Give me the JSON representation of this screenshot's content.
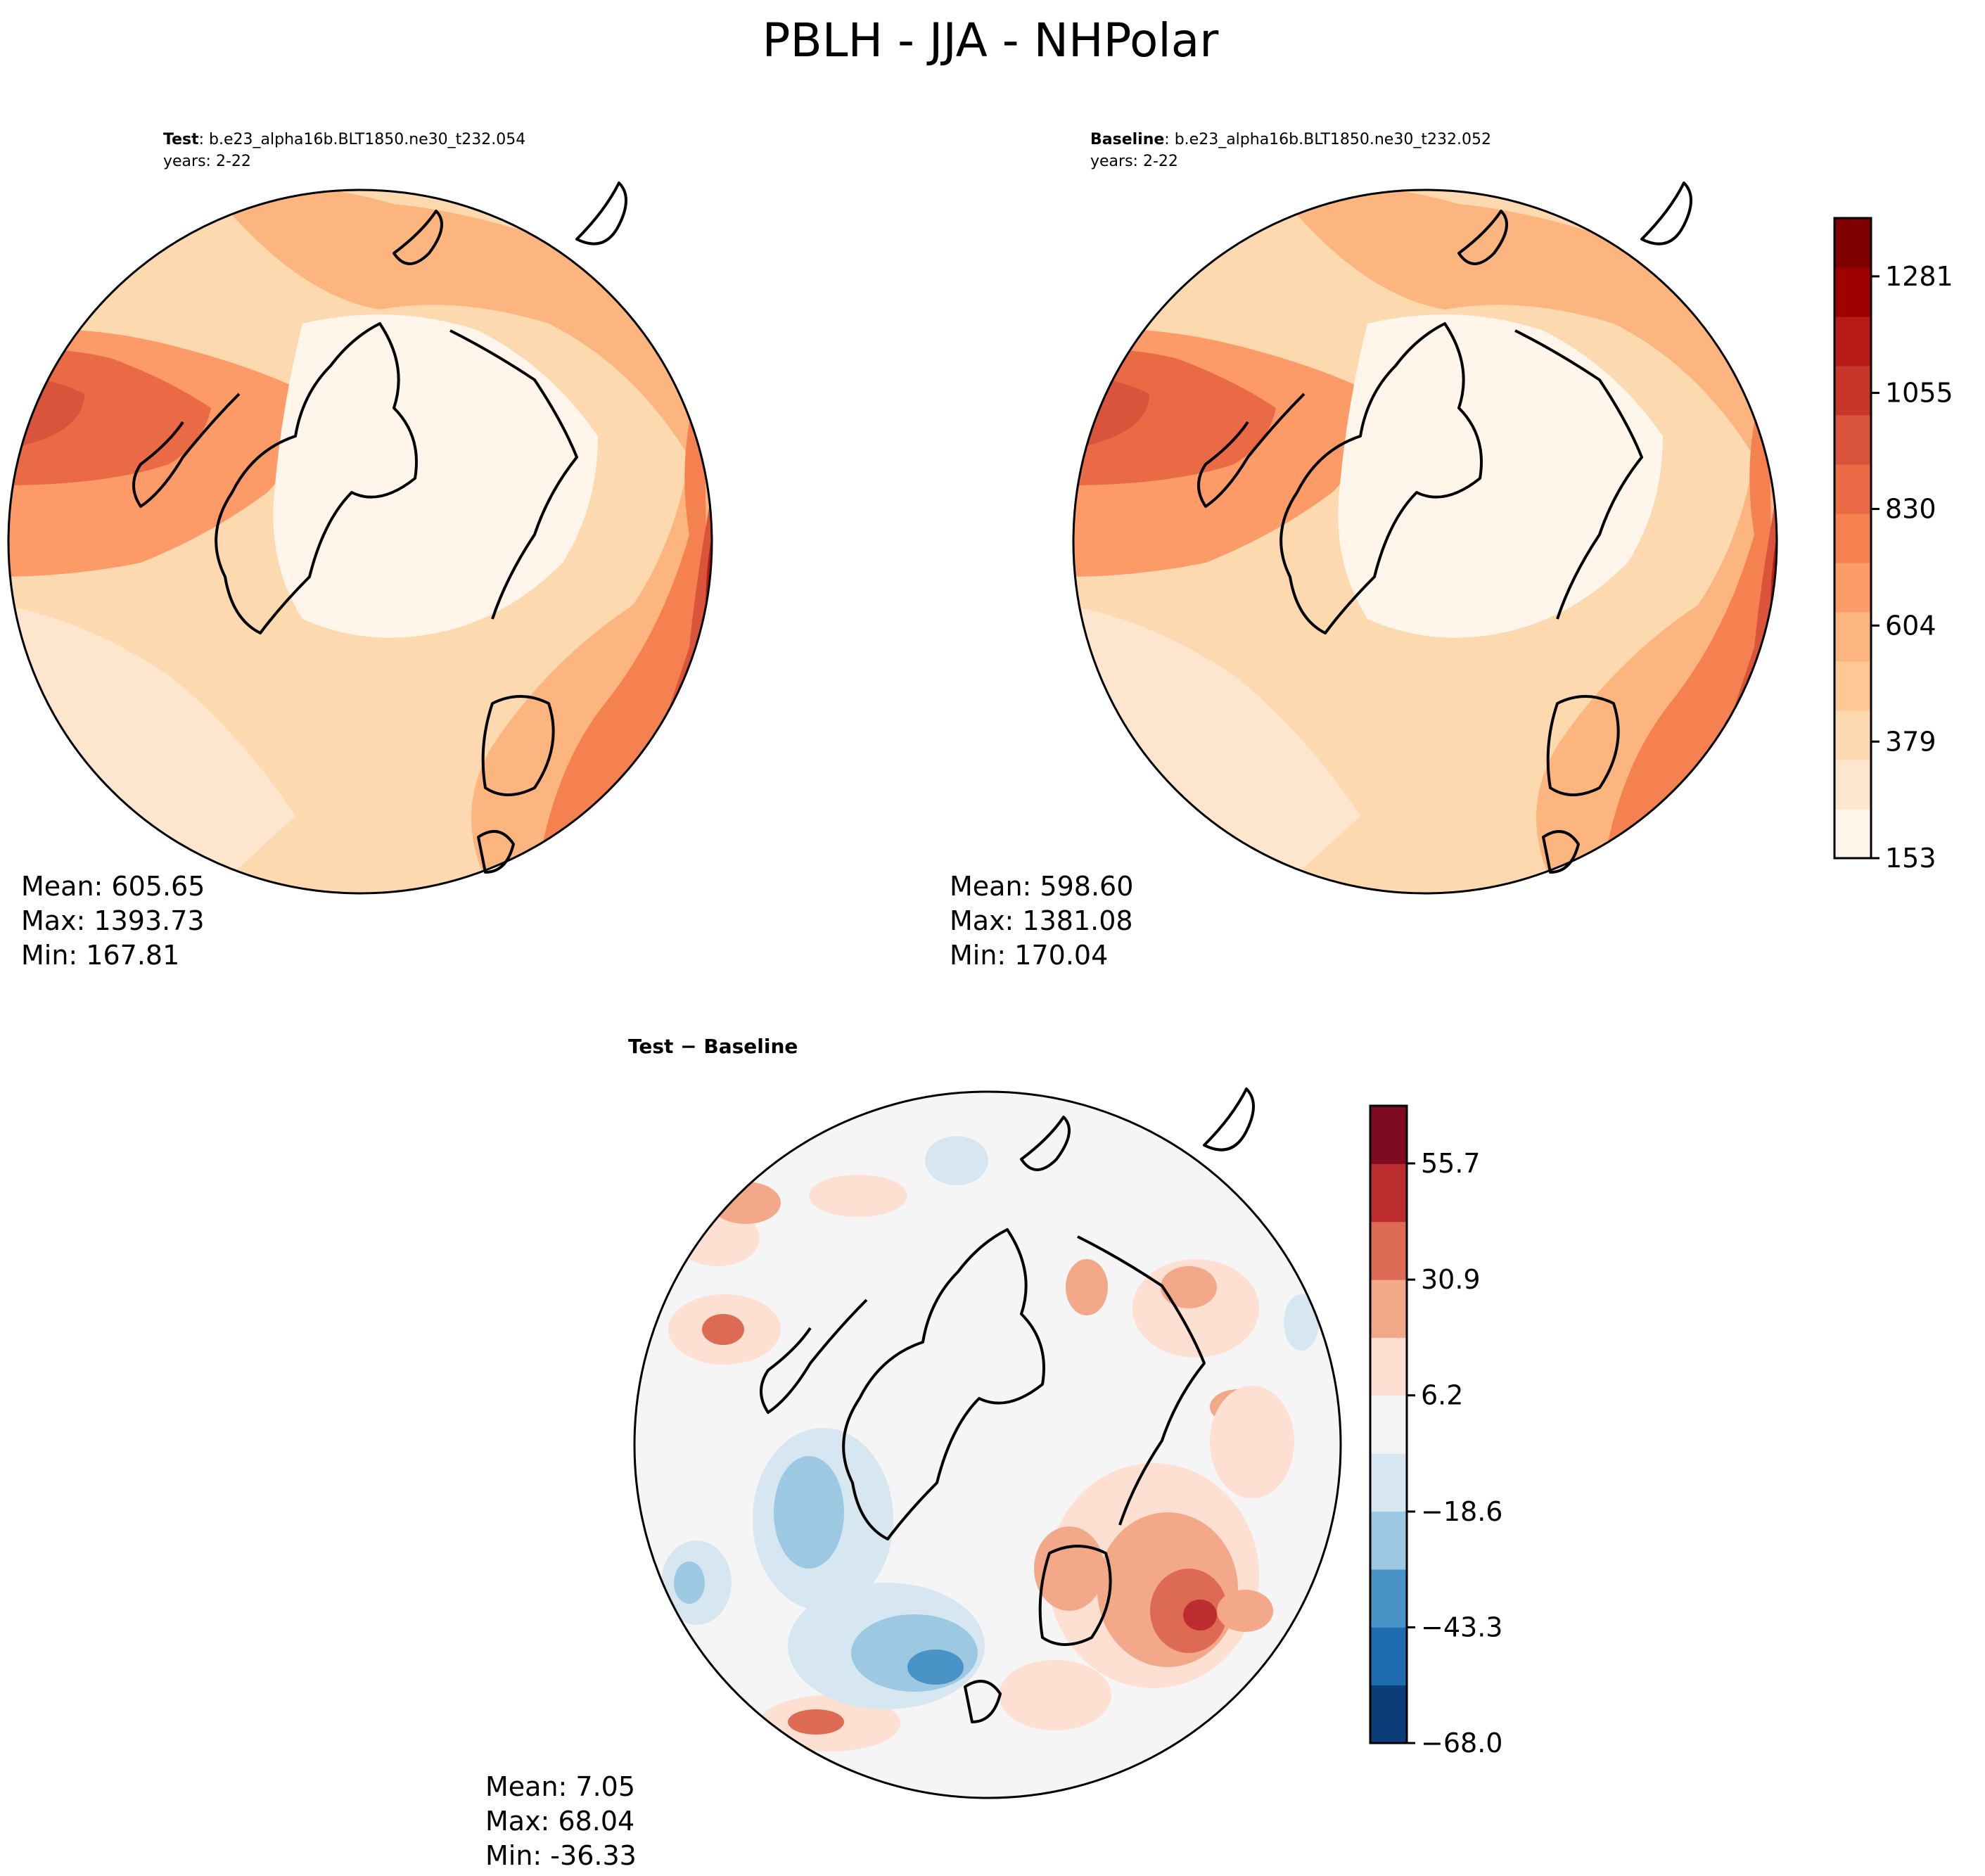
{
  "figure": {
    "title": "PBLH - JJA - NHPolar"
  },
  "chart_data": [
    {
      "type": "heatmap",
      "projection": "north-polar-stereographic",
      "variable": "PBLH",
      "season": "JJA",
      "region": "NHPolar",
      "title_label": "Test",
      "title_case": ": b.e23_alpha16b.BLT1850.ne30_t232.054",
      "years": "years: 2-22",
      "stats": {
        "mean": "Mean: 605.65",
        "max": "Max: 1393.73",
        "min": "Min: 167.81"
      },
      "colorbar_ref": "absolute"
    },
    {
      "type": "heatmap",
      "projection": "north-polar-stereographic",
      "variable": "PBLH",
      "season": "JJA",
      "region": "NHPolar",
      "title_label": "Baseline",
      "title_case": ": b.e23_alpha16b.BLT1850.ne30_t232.052",
      "years": "years: 2-22",
      "stats": {
        "mean": "Mean: 598.60",
        "max": "Max: 1381.08",
        "min": "Min: 170.04"
      },
      "colorbar_ref": "absolute"
    },
    {
      "type": "heatmap",
      "projection": "north-polar-stereographic",
      "title_label": "Test − Baseline",
      "stats": {
        "mean": "Mean:  7.05",
        "max": "Max: 68.04",
        "min": "Min: -36.33"
      },
      "colorbar_ref": "difference"
    }
  ],
  "colorbars": {
    "absolute": {
      "range": [
        153,
        1394
      ],
      "tick_values": [
        153,
        379,
        604,
        830,
        1055,
        1281
      ],
      "tick_labels": [
        "153",
        "379",
        "604",
        "830",
        "1055",
        "1281"
      ],
      "colors": [
        "#fff5eb",
        "#fee6ce",
        "#fdd9b0",
        "#fdc895",
        "#fdb57f",
        "#fc9b68",
        "#f4814f",
        "#e96a45",
        "#d9543a",
        "#c8362a",
        "#b81b16",
        "#9f0000",
        "#800000"
      ]
    },
    "difference": {
      "range": [
        -68.0,
        68.0
      ],
      "tick_values": [
        -68.0,
        -43.3,
        -18.6,
        6.2,
        30.9,
        55.7
      ],
      "tick_labels": [
        "−68.0",
        "−43.3",
        "−18.6",
        "6.2",
        "30.9",
        "55.7"
      ],
      "colors": [
        "#0b3d78",
        "#1f6bb0",
        "#4a93c6",
        "#9cc8e2",
        "#d6e7f2",
        "#f5f5f5",
        "#fde0d2",
        "#f3a88a",
        "#dd6b54",
        "#bd2d2f",
        "#7f0b22"
      ]
    }
  }
}
